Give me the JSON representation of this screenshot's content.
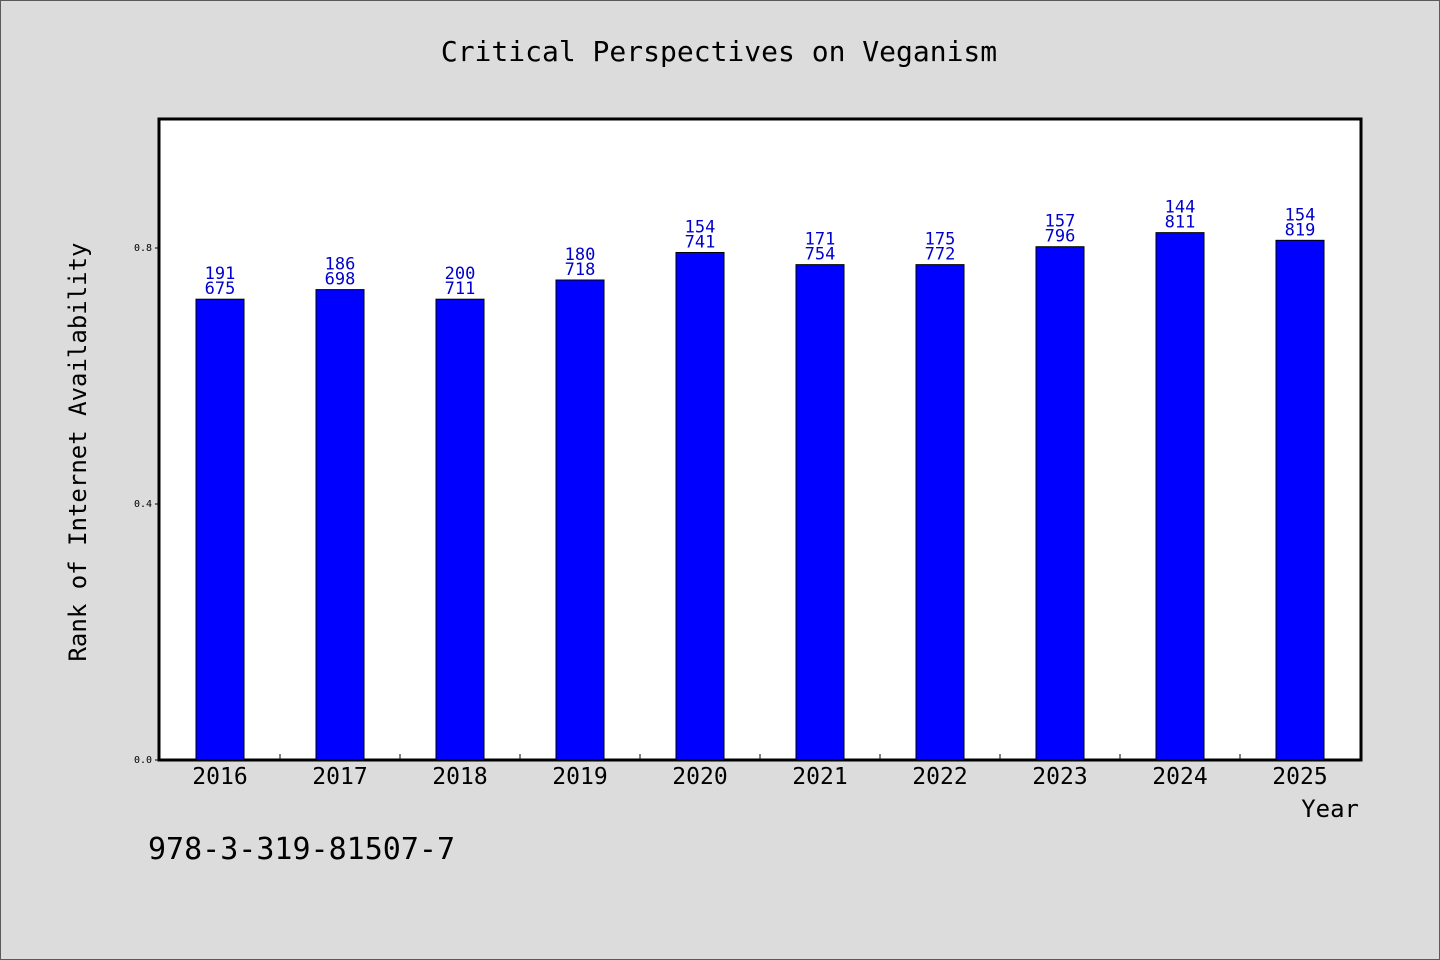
{
  "isbn": "978-3-319-81507-7",
  "colors": {
    "background": "#dcdcdc",
    "plot_background": "#ffffff",
    "bar_fill": "#0000ff",
    "bar_stroke": "#000000",
    "label_color": "#0000cc",
    "axis_color": "#000000"
  },
  "chart_data": {
    "type": "bar",
    "title": "Critical Perspectives on Veganism",
    "xlabel": "Year",
    "ylabel": "Rank of Internet Availability",
    "categories": [
      "2016",
      "2017",
      "2018",
      "2019",
      "2020",
      "2021",
      "2022",
      "2023",
      "2024",
      "2025"
    ],
    "values": [
      0.72,
      0.735,
      0.72,
      0.75,
      0.793,
      0.774,
      0.774,
      0.802,
      0.824,
      0.812
    ],
    "labels_top": [
      "191",
      "186",
      "200",
      "180",
      "154",
      "171",
      "175",
      "157",
      "144",
      "154"
    ],
    "labels_bottom": [
      "675",
      "698",
      "711",
      "718",
      "741",
      "754",
      "772",
      "796",
      "811",
      "819"
    ],
    "ylim": [
      0,
      1.0
    ],
    "yticks": [
      0.0,
      0.4,
      0.8
    ],
    "ytick_labels": [
      "0.0",
      "0.4",
      "0.8"
    ],
    "grid": false,
    "legend": "none"
  }
}
